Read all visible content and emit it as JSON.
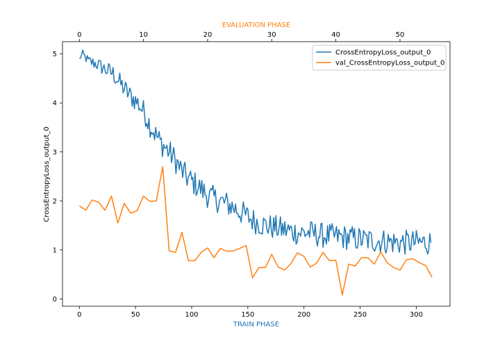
{
  "chart_data": {
    "type": "line",
    "xlabel": "TRAIN PHASE",
    "x2label": "EVALUATION PHASE",
    "ylabel": "CrossEntropyLoss_output_0",
    "xlim": [
      -15,
      330
    ],
    "x2lim": [
      -2.63,
      57.8
    ],
    "ylim": [
      -0.15,
      5.25
    ],
    "xticks": [
      0,
      50,
      100,
      150,
      200,
      250,
      300
    ],
    "x2ticks": [
      0,
      10,
      20,
      30,
      40,
      50
    ],
    "yticks": [
      0,
      1,
      2,
      3,
      4,
      5
    ],
    "legend_position": "top-right",
    "colors": {
      "train": "#1f77b4",
      "val": "#ff7f0e"
    },
    "series": [
      {
        "name": "CrossEntropyLoss_output_0",
        "axis": "bottom",
        "anchors": [
          [
            0,
            4.9
          ],
          [
            3,
            5.0
          ],
          [
            8,
            4.85
          ],
          [
            15,
            4.8
          ],
          [
            22,
            4.7
          ],
          [
            30,
            4.6
          ],
          [
            38,
            4.35
          ],
          [
            45,
            4.15
          ],
          [
            52,
            4.0
          ],
          [
            58,
            3.8
          ],
          [
            63,
            3.55
          ],
          [
            68,
            3.35
          ],
          [
            72,
            3.2
          ],
          [
            78,
            3.05
          ],
          [
            85,
            2.85
          ],
          [
            90,
            2.65
          ],
          [
            95,
            2.5
          ],
          [
            100,
            2.4
          ],
          [
            108,
            2.25
          ],
          [
            115,
            2.1
          ],
          [
            125,
            2.0
          ],
          [
            135,
            1.9
          ],
          [
            145,
            1.75
          ],
          [
            155,
            1.6
          ],
          [
            165,
            1.5
          ],
          [
            175,
            1.45
          ],
          [
            185,
            1.4
          ],
          [
            195,
            1.35
          ],
          [
            205,
            1.35
          ],
          [
            215,
            1.3
          ],
          [
            225,
            1.28
          ],
          [
            240,
            1.25
          ],
          [
            255,
            1.2
          ],
          [
            270,
            1.18
          ],
          [
            285,
            1.15
          ],
          [
            300,
            1.15
          ],
          [
            313,
            1.15
          ]
        ],
        "noise": [
          0.04,
          0.08,
          0.12,
          0.14,
          0.17,
          0.19,
          0.21,
          0.22,
          0.23,
          0.24,
          0.25,
          0.25,
          0.26,
          0.26,
          0.26,
          0.26,
          0.26,
          0.26,
          0.26,
          0.26,
          0.26,
          0.26,
          0.26,
          0.26,
          0.26,
          0.26,
          0.26,
          0.26,
          0.26,
          0.26,
          0.26,
          0.26,
          0.26,
          0.26,
          0.26,
          0.26,
          0.26
        ]
      },
      {
        "name": "val_CrossEntropyLoss_output_0",
        "axis": "top",
        "x": [
          0,
          1,
          2,
          3,
          4,
          5,
          6,
          7,
          8,
          9,
          10,
          11,
          12,
          13,
          14,
          15,
          16,
          17,
          18,
          19,
          20,
          21,
          22,
          23,
          24,
          25,
          26,
          27,
          28,
          29,
          30,
          31,
          32,
          33,
          34,
          35,
          36,
          37,
          38,
          39,
          40,
          41,
          42,
          43,
          44,
          45,
          46,
          47,
          48,
          49,
          50,
          51,
          52,
          53,
          54,
          55
        ],
        "values": [
          1.9,
          1.81,
          2.02,
          1.97,
          1.81,
          2.1,
          1.55,
          1.95,
          1.75,
          1.8,
          2.1,
          1.99,
          2.0,
          2.7,
          0.98,
          0.95,
          1.36,
          0.78,
          0.78,
          0.95,
          1.04,
          0.84,
          1.03,
          0.97,
          0.98,
          1.03,
          1.09,
          0.43,
          0.64,
          0.64,
          0.91,
          0.65,
          0.59,
          0.72,
          0.94,
          0.87,
          0.65,
          0.73,
          0.95,
          0.78,
          0.79,
          0.08,
          0.71,
          0.67,
          0.84,
          0.84,
          0.71,
          0.96,
          0.74,
          0.64,
          0.59,
          0.8,
          0.82,
          0.74,
          0.68,
          0.44
        ]
      }
    ]
  }
}
